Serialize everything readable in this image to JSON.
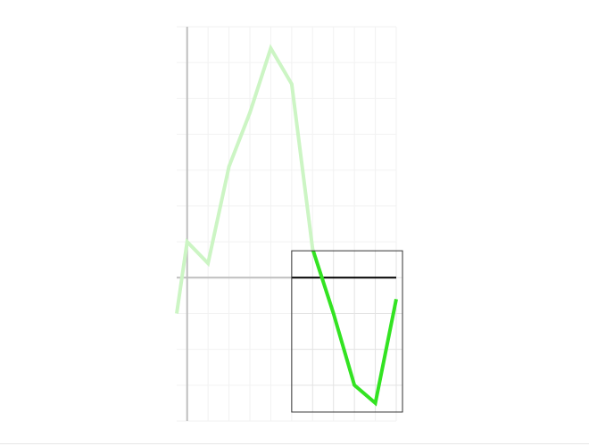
{
  "chart_data": {
    "type": "line",
    "title": "",
    "xlabel": "",
    "ylabel": "",
    "x": [
      -0.5,
      0,
      1,
      2,
      3,
      4,
      5,
      6,
      7,
      8,
      9,
      10
    ],
    "series": [
      {
        "values": [
          -1.0,
          1.0,
          0.4,
          3.1,
          4.6,
          6.4,
          5.4,
          0.8,
          -1.0,
          -3.0,
          -3.5,
          -0.6
        ]
      }
    ],
    "xlim": [
      -0.5,
      10
    ],
    "ylim": [
      -4,
      7
    ],
    "grid": true,
    "zoom_window": {
      "x_range": [
        5.0,
        10.3
      ],
      "y_range": [
        -3.75,
        0.75
      ]
    },
    "colors": {
      "line_faded": "#ccf5c4",
      "line_highlight": "#33e322",
      "axis": "#bfbfbf",
      "grid": "#f2f2f2",
      "zero_line_zoom": "#000000",
      "zoom_box": "#333333"
    }
  }
}
